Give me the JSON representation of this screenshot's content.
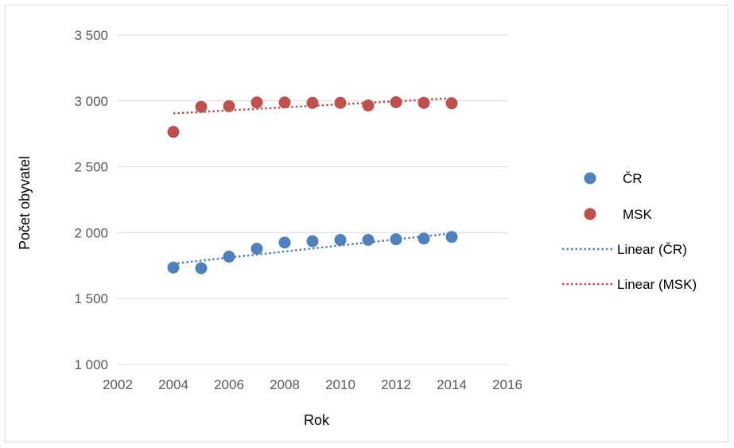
{
  "chart_data": {
    "type": "scatter",
    "xlabel": "Rok",
    "ylabel": "Počet obyvatel",
    "xlim": [
      2002,
      2016
    ],
    "ylim": [
      1000,
      3500
    ],
    "x_ticks": [
      "2002",
      "2004",
      "2006",
      "2008",
      "2010",
      "2012",
      "2014",
      "2016"
    ],
    "y_ticks": [
      "1 000",
      "1 500",
      "2 000",
      "2 500",
      "3 000",
      "3 500"
    ],
    "grid": "horizontal",
    "legend_position": "right",
    "series": [
      {
        "name": "ČR",
        "color": "#4f81bd",
        "x": [
          2004,
          2005,
          2006,
          2007,
          2008,
          2009,
          2010,
          2011,
          2012,
          2013,
          2014
        ],
        "y": [
          1735,
          1730,
          1818,
          1878,
          1925,
          1935,
          1945,
          1945,
          1950,
          1955,
          1968
        ]
      },
      {
        "name": "MSK",
        "color": "#c0504d",
        "x": [
          2004,
          2005,
          2006,
          2007,
          2008,
          2009,
          2010,
          2011,
          2012,
          2013,
          2014
        ],
        "y": [
          2765,
          2955,
          2960,
          2988,
          2988,
          2985,
          2985,
          2965,
          2990,
          2985,
          2982
        ]
      }
    ],
    "trendlines": [
      {
        "name": "Linear (ČR)",
        "color": "#4f81bd",
        "x": [
          2004,
          2014
        ],
        "y": [
          1765,
          1995
        ]
      },
      {
        "name": "Linear (MSK)",
        "color": "#c0504d",
        "x": [
          2004,
          2014
        ],
        "y": [
          2905,
          3020
        ]
      }
    ]
  }
}
